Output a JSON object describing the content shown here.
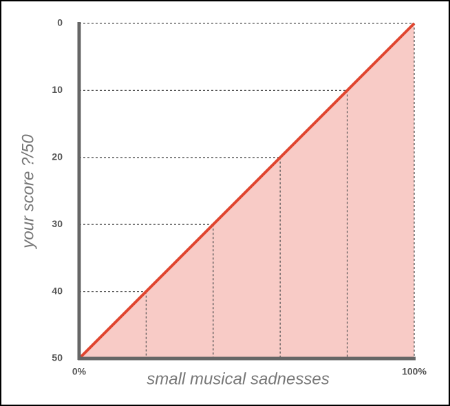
{
  "chart_data": {
    "type": "area",
    "x_label": "small musical sadnesses",
    "y_label": "your score ?/50",
    "x": [
      0,
      20,
      40,
      60,
      80,
      100
    ],
    "series": [
      {
        "values": [
          50,
          40,
          30,
          20,
          10,
          0
        ],
        "color": "#e0452f",
        "fill": "#f8cbc6"
      }
    ],
    "xlim": [
      0,
      100
    ],
    "xticks": [
      {
        "value": 0,
        "label": "0%"
      },
      {
        "value": 100,
        "label": "100%"
      }
    ],
    "ylim": [
      50,
      0
    ],
    "yticks": [
      0,
      10,
      20,
      30,
      40,
      50
    ],
    "grid": true
  }
}
